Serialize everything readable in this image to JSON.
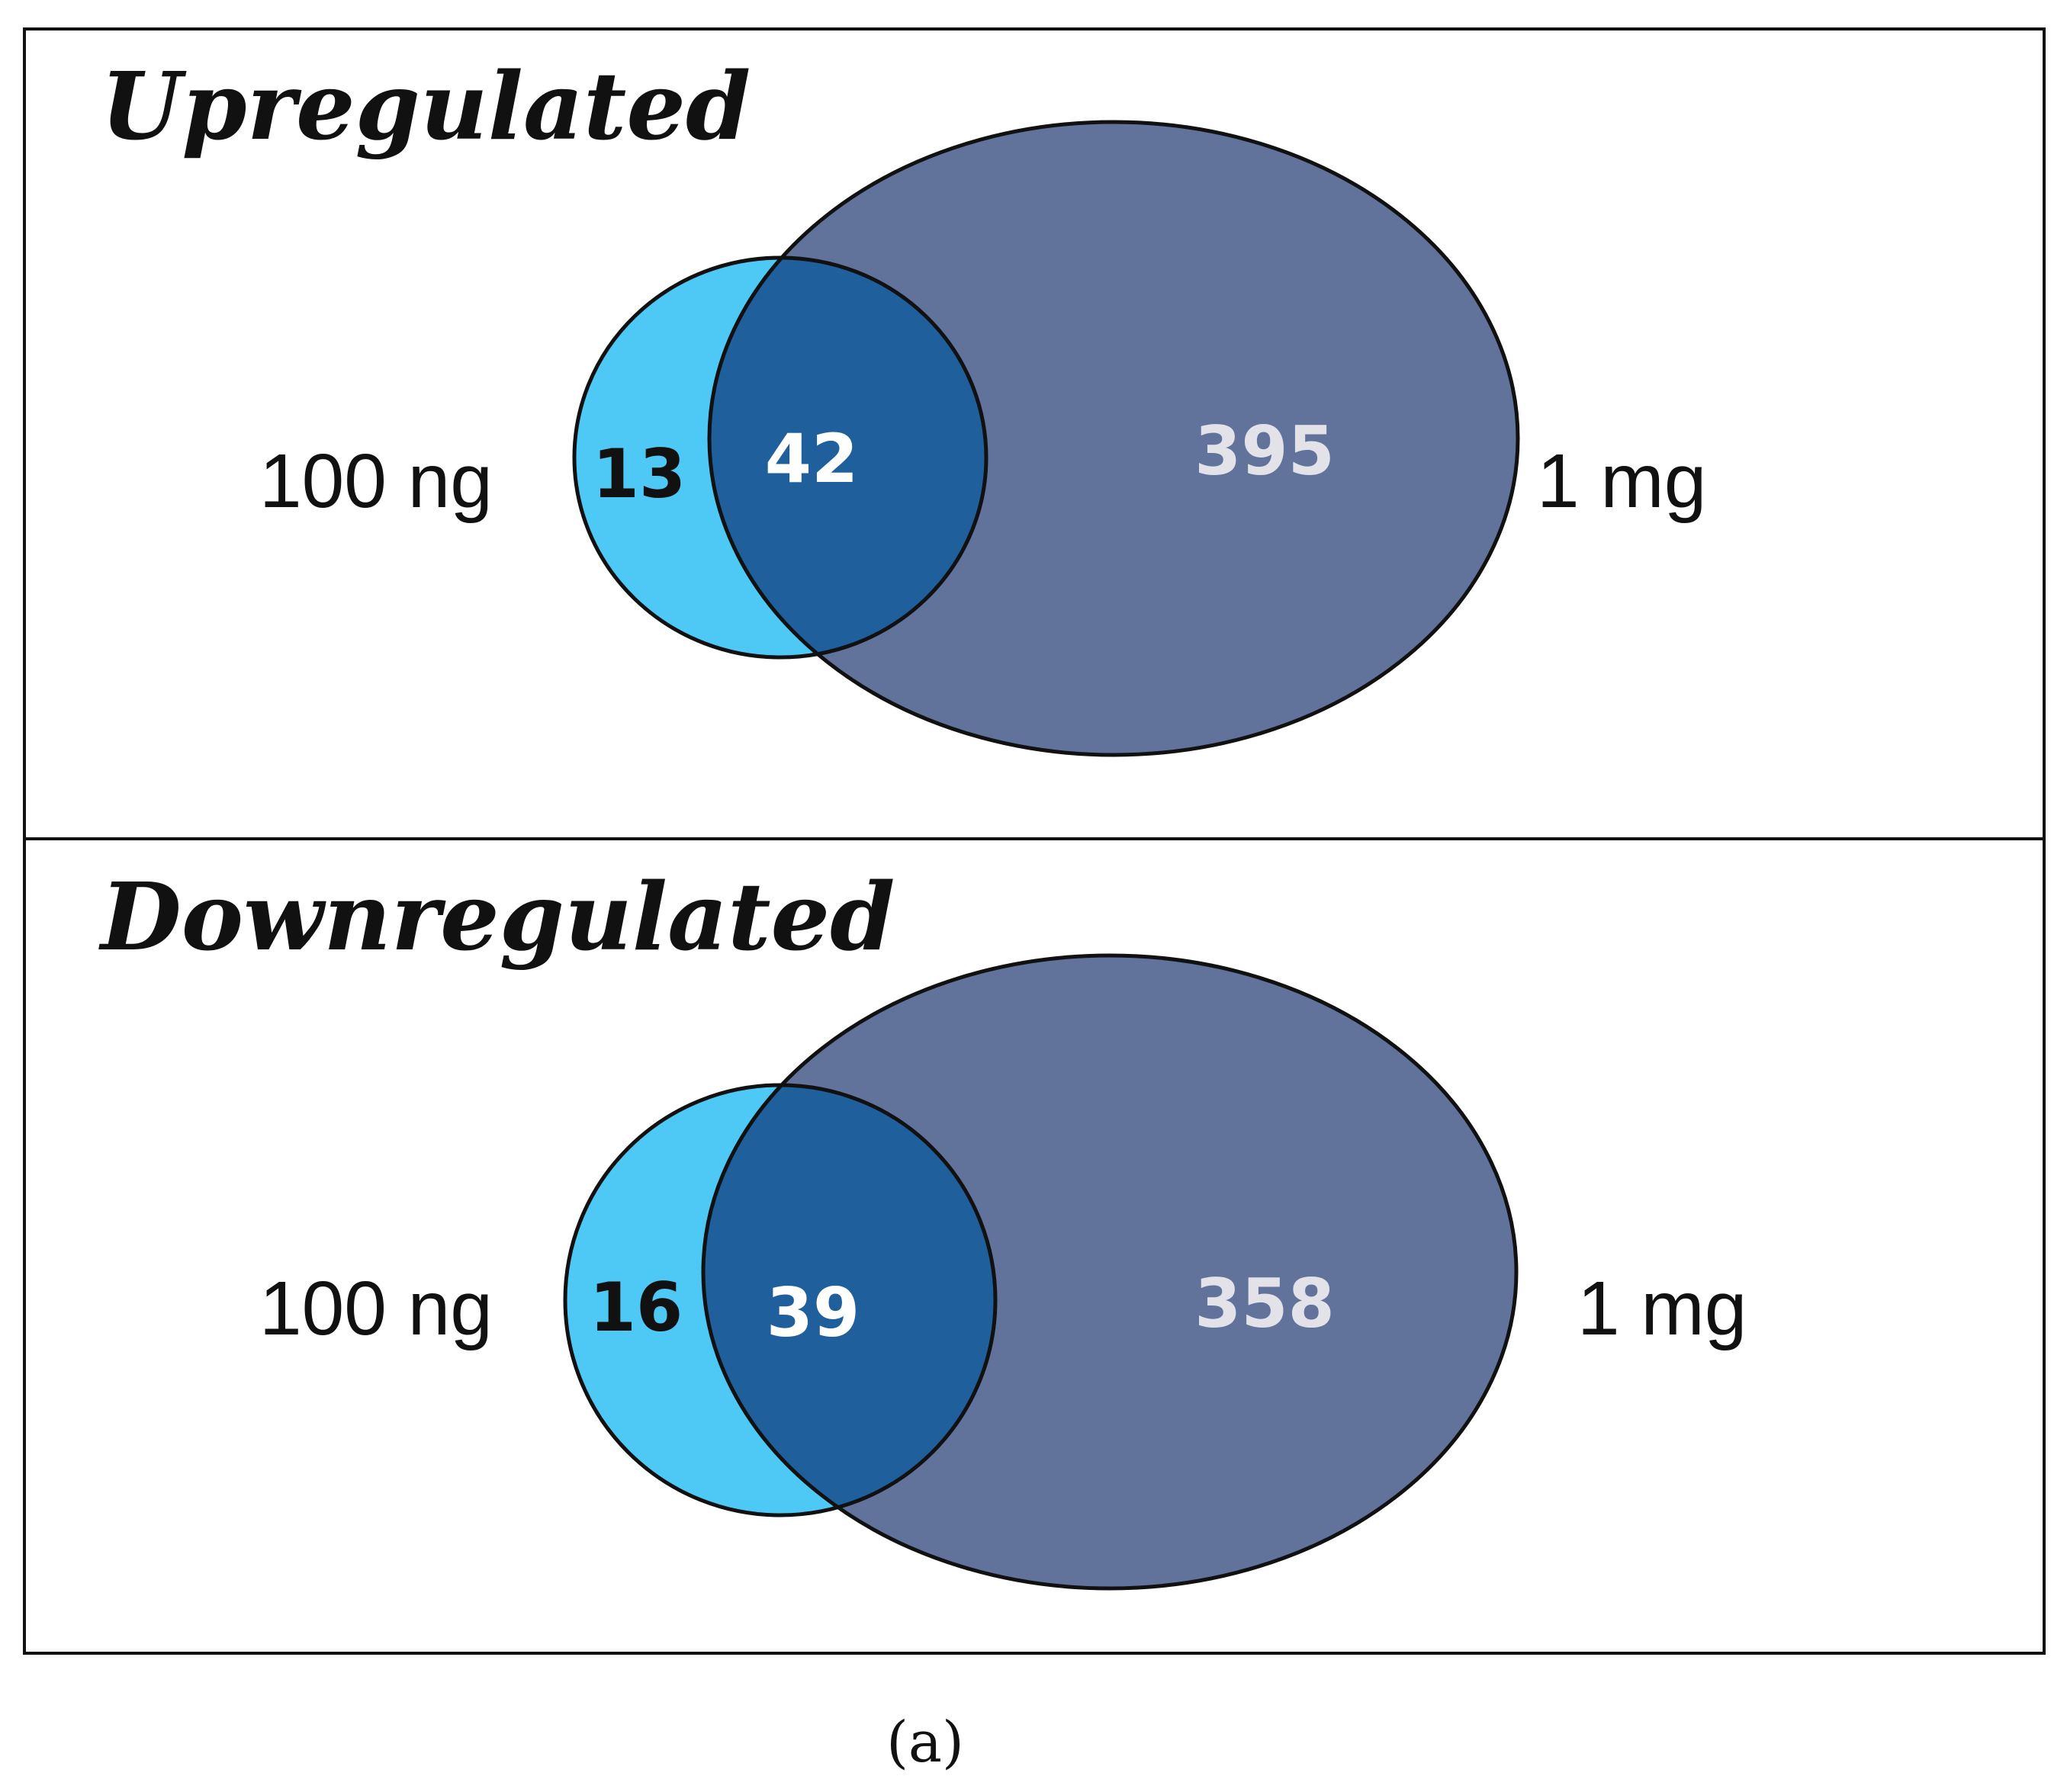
{
  "figure": {
    "caption": "(a)",
    "colors": {
      "small_set": "#4EC9F5",
      "large_set": "#61729B",
      "overlap": "#1E5F9C",
      "outline": "#111111",
      "count_dark": "#111111",
      "count_light": "#FFFFFF",
      "count_gray": "#E2E2E8"
    }
  },
  "panels": [
    {
      "title": "Upregulated",
      "set_a": {
        "label": "100 ng",
        "only_count": "13"
      },
      "set_b": {
        "label": "1 mg",
        "only_count": "395"
      },
      "overlap_count": "42"
    },
    {
      "title": "Downregulated",
      "set_a": {
        "label": "100 ng",
        "only_count": "16"
      },
      "set_b": {
        "label": "1 mg",
        "only_count": "358"
      },
      "overlap_count": "39"
    }
  ]
}
